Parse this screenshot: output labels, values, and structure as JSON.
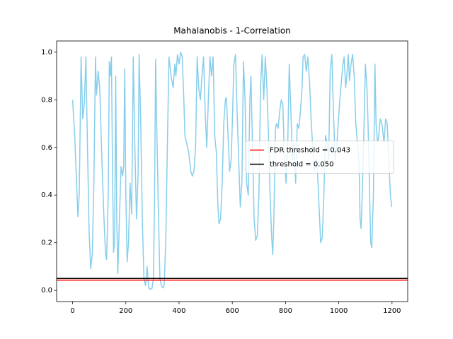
{
  "chart_data": {
    "type": "line",
    "title": "Mahalanobis - 1-Correlation",
    "xlim": [
      -59.95,
      1258.95
    ],
    "ylim": [
      -0.047,
      1.047
    ],
    "xticks": [
      0,
      200,
      400,
      600,
      800,
      1000,
      1200
    ],
    "yticks": [
      {
        "value": 0,
        "label": "0.0"
      },
      {
        "value": 0.2,
        "label": "0.2"
      },
      {
        "value": 0.4,
        "label": "0.4"
      },
      {
        "value": 0.6,
        "label": "0.6"
      },
      {
        "value": 0.8,
        "label": "0.8"
      },
      {
        "value": 1,
        "label": "1.0"
      }
    ],
    "legend": "center right",
    "series": [
      {
        "color": "#87ceeb",
        "x": [
          0,
          8,
          15,
          20,
          25,
          32,
          38,
          44,
          50,
          56,
          62,
          68,
          74,
          80,
          86,
          90,
          96,
          102,
          110,
          118,
          124,
          128,
          134,
          138,
          142,
          146,
          150,
          154,
          158,
          162,
          166,
          170,
          176,
          182,
          188,
          192,
          196,
          200,
          205,
          210,
          216,
          222,
          228,
          234,
          240,
          246,
          250,
          256,
          262,
          268,
          274,
          280,
          286,
          292,
          298,
          304,
          308,
          312,
          316,
          322,
          328,
          334,
          340,
          344,
          350,
          356,
          362,
          370,
          378,
          384,
          388,
          394,
          400,
          406,
          412,
          418,
          422,
          428,
          436,
          444,
          450,
          456,
          462,
          468,
          474,
          480,
          486,
          492,
          498,
          504,
          510,
          516,
          522,
          528,
          534,
          540,
          546,
          550,
          556,
          562,
          568,
          574,
          578,
          584,
          590,
          596,
          600,
          606,
          612,
          618,
          624,
          630,
          636,
          642,
          648,
          654,
          660,
          666,
          670,
          676,
          682,
          688,
          694,
          700,
          706,
          712,
          718,
          724,
          730,
          736,
          742,
          748,
          752,
          756,
          762,
          766,
          772,
          778,
          784,
          790,
          796,
          802,
          808,
          814,
          820,
          826,
          832,
          838,
          844,
          850,
          856,
          862,
          866,
          872,
          878,
          884,
          890,
          896,
          902,
          908,
          914,
          920,
          926,
          932,
          938,
          944,
          950,
          956,
          962,
          968,
          974,
          980,
          986,
          992,
          998,
          1004,
          1010,
          1016,
          1020,
          1026,
          1030,
          1036,
          1040,
          1046,
          1052,
          1058,
          1064,
          1070,
          1076,
          1080,
          1084,
          1088,
          1094,
          1100,
          1106,
          1110,
          1116,
          1120,
          1124,
          1130,
          1136,
          1140,
          1146,
          1150,
          1156,
          1162,
          1170,
          1176,
          1182,
          1188,
          1194,
          1199
        ],
        "values": [
          0.8,
          0.65,
          0.45,
          0.31,
          0.4,
          0.98,
          0.72,
          0.78,
          0.98,
          0.6,
          0.25,
          0.09,
          0.15,
          0.45,
          0.98,
          0.82,
          0.92,
          0.85,
          0.55,
          0.3,
          0.15,
          0.13,
          0.4,
          0.96,
          0.9,
          0.98,
          0.5,
          0.16,
          0.2,
          0.9,
          0.3,
          0.07,
          0.3,
          0.52,
          0.48,
          0.52,
          0.93,
          0.4,
          0.12,
          0.2,
          0.45,
          0.32,
          0.98,
          0.6,
          0.3,
          0.48,
          0.99,
          0.7,
          0.3,
          0.05,
          0.02,
          0.1,
          0.01,
          0.005,
          0.008,
          0.05,
          0.4,
          0.97,
          0.7,
          0.35,
          0.05,
          0.02,
          0.01,
          0.02,
          0.2,
          0.6,
          0.98,
          0.9,
          0.85,
          0.95,
          0.9,
          0.99,
          0.95,
          1.0,
          0.98,
          0.8,
          0.65,
          0.62,
          0.58,
          0.5,
          0.48,
          0.5,
          0.6,
          0.98,
          0.85,
          0.8,
          0.9,
          0.98,
          0.75,
          0.6,
          0.8,
          0.98,
          0.9,
          0.98,
          0.65,
          0.58,
          0.35,
          0.28,
          0.3,
          0.45,
          0.7,
          0.8,
          0.81,
          0.65,
          0.5,
          0.55,
          0.7,
          0.95,
          0.99,
          0.75,
          0.55,
          0.35,
          0.45,
          0.96,
          0.8,
          0.45,
          0.4,
          0.8,
          0.9,
          0.6,
          0.3,
          0.21,
          0.23,
          0.4,
          0.85,
          0.99,
          0.8,
          0.98,
          0.85,
          0.65,
          0.4,
          0.22,
          0.15,
          0.3,
          0.68,
          0.7,
          0.68,
          0.75,
          0.8,
          0.78,
          0.55,
          0.45,
          0.6,
          0.95,
          0.75,
          0.55,
          0.62,
          0.45,
          0.7,
          0.68,
          0.75,
          0.85,
          0.98,
          0.99,
          0.92,
          0.98,
          0.88,
          0.72,
          0.6,
          0.5,
          0.55,
          0.5,
          0.35,
          0.2,
          0.22,
          0.4,
          0.65,
          0.62,
          0.55,
          0.93,
          0.99,
          0.75,
          0.55,
          0.6,
          0.7,
          0.8,
          0.88,
          0.95,
          0.98,
          0.85,
          0.9,
          0.99,
          0.88,
          0.95,
          0.99,
          0.9,
          0.7,
          0.62,
          0.55,
          0.3,
          0.26,
          0.4,
          0.65,
          0.95,
          0.85,
          0.7,
          0.4,
          0.2,
          0.18,
          0.4,
          0.95,
          0.7,
          0.62,
          0.65,
          0.72,
          0.7,
          0.62,
          0.72,
          0.7,
          0.55,
          0.4,
          0.35
        ]
      }
    ],
    "thresholds": [
      {
        "name": "FDR threshold = 0.043",
        "color": "#ff0000",
        "value": 0.043
      },
      {
        "name": "threshold = 0.050",
        "color": "#000000",
        "value": 0.05
      }
    ]
  }
}
